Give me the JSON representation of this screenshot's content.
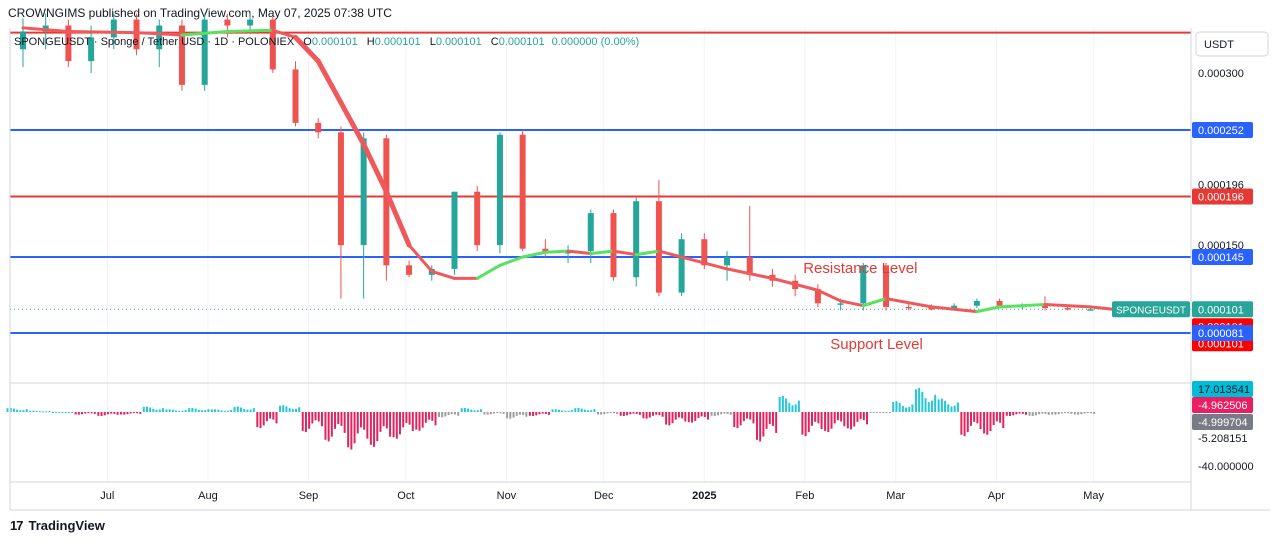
{
  "header": {
    "published": "CROWNGIMS published on TradingView.com, May 07, 2025 07:38 UTC"
  },
  "legend": {
    "symbol": "SPONGEUSDT · Sponge / Tether USD · 1D · POLONIEX",
    "o_label": "O",
    "o_value": "0.000101",
    "h_label": "H",
    "h_value": "0.000101",
    "l_label": "L",
    "l_value": "0.000101",
    "c_label": "C",
    "c_value": "0.000101",
    "change": "0.000000 (0.00%)"
  },
  "currency": "USDT",
  "footer": {
    "brand": "TradingView",
    "logo_text": "17"
  },
  "colors": {
    "bull": "#26a69a",
    "bear": "#ef5350",
    "red_line": "#e53935",
    "blue_line": "#2962ff",
    "ma_bear": "#f0595c",
    "ma_bull": "#59e15f",
    "osc_pos": "#26c6da",
    "osc_neg": "#e0245e",
    "osc_flat": "#9e9e9e"
  },
  "chart_data": [
    {
      "type": "candlestick",
      "symbol": "SPONGEUSDT",
      "ylim": [
        1e-05,
        0.000343
      ],
      "y_ticks": [
        "0.000300",
        "0.000252",
        "0.000196",
        "0.000150",
        "0.000145",
        "0.000101",
        "0.000081"
      ],
      "x_ticks": [
        "Jul",
        "Aug",
        "Sep",
        "Oct",
        "Nov",
        "Dec",
        "2025",
        "Feb",
        "Mar",
        "Apr",
        "May"
      ],
      "horizontal_levels": [
        {
          "value": 0.000334,
          "color": "red"
        },
        {
          "value": 0.000252,
          "color": "blue",
          "label": "0.000252"
        },
        {
          "value": 0.000196,
          "color": "red",
          "label": "0.000196"
        },
        {
          "value": 0.000145,
          "color": "blue",
          "label": "0.000145"
        },
        {
          "value": 8.1e-05,
          "color": "blue",
          "label": "0.000081"
        }
      ],
      "annotations": [
        {
          "text": "Resistance Level",
          "near_value": 0.000135,
          "near_date": "2025-02-15"
        },
        {
          "text": "Support Level",
          "near_value": 7.1e-05,
          "near_date": "2025-02-20"
        }
      ],
      "last_price": {
        "label": "SPONGEUSDT",
        "value": "0.000101"
      },
      "price_tags": [
        "0.000101",
        "0.000101"
      ],
      "candles": [
        [
          "2024-06-05",
          0.00032,
          0.000346,
          0.000305,
          0.000335
        ],
        [
          "2024-06-12",
          0.000335,
          0.00035,
          0.00032,
          0.00034
        ],
        [
          "2024-06-19",
          0.00034,
          0.000345,
          0.000305,
          0.00031
        ],
        [
          "2024-06-26",
          0.00031,
          0.00034,
          0.0003,
          0.00033
        ],
        [
          "2024-07-03",
          0.00033,
          0.00035,
          0.00032,
          0.000345
        ],
        [
          "2024-07-10",
          0.000345,
          0.00035,
          0.000315,
          0.00032
        ],
        [
          "2024-07-17",
          0.00032,
          0.000345,
          0.000305,
          0.00034
        ],
        [
          "2024-07-24",
          0.00034,
          0.000345,
          0.000285,
          0.00029
        ],
        [
          "2024-07-31",
          0.00029,
          0.00035,
          0.000285,
          0.000345
        ],
        [
          "2024-08-07",
          0.000345,
          0.00035,
          0.00033,
          0.00034
        ],
        [
          "2024-08-14",
          0.00034,
          0.00035,
          0.000335,
          0.000345
        ],
        [
          "2024-08-21",
          0.000345,
          0.000348,
          0.0003,
          0.000303
        ],
        [
          "2024-08-28",
          0.000303,
          0.00031,
          0.000255,
          0.000258
        ],
        [
          "2024-09-04",
          0.000258,
          0.000262,
          0.000245,
          0.00025
        ],
        [
          "2024-09-11",
          0.00025,
          0.000255,
          0.00011,
          0.000155
        ],
        [
          "2024-09-18",
          0.000155,
          0.00025,
          0.00011,
          0.000245
        ],
        [
          "2024-09-25",
          0.000245,
          0.000248,
          0.000125,
          0.000138
        ],
        [
          "2024-10-02",
          0.000138,
          0.000142,
          0.000128,
          0.00013
        ],
        [
          "2024-10-09",
          0.00013,
          0.000138,
          0.000125,
          0.000135
        ],
        [
          "2024-10-16",
          0.000135,
          0.0002,
          0.00013,
          0.0002
        ],
        [
          "2024-10-23",
          0.0002,
          0.000205,
          0.00015,
          0.000155
        ],
        [
          "2024-10-30",
          0.000155,
          0.00025,
          0.000148,
          0.000248
        ],
        [
          "2024-11-06",
          0.000248,
          0.000252,
          0.00015,
          0.000152
        ],
        [
          "2024-11-13",
          0.000152,
          0.00016,
          0.000145,
          0.000148
        ],
        [
          "2024-11-20",
          0.000148,
          0.000155,
          0.00014,
          0.00015
        ],
        [
          "2024-11-27",
          0.00015,
          0.000185,
          0.00014,
          0.000182
        ],
        [
          "2024-12-04",
          0.000182,
          0.000185,
          0.000125,
          0.000128
        ],
        [
          "2024-12-11",
          0.000128,
          0.000195,
          0.00012,
          0.000192
        ],
        [
          "2024-12-18",
          0.000192,
          0.00021,
          0.000112,
          0.000115
        ],
        [
          "2024-12-25",
          0.000115,
          0.000165,
          0.000112,
          0.00016
        ],
        [
          "2025-01-01",
          0.00016,
          0.000165,
          0.000135,
          0.000138
        ],
        [
          "2025-01-08",
          0.000138,
          0.00015,
          0.000125,
          0.000145
        ],
        [
          "2025-01-15",
          0.000145,
          0.000188,
          0.000125,
          0.00013
        ],
        [
          "2025-01-22",
          0.00013,
          0.000135,
          0.00012,
          0.000125
        ],
        [
          "2025-01-29",
          0.000125,
          0.00013,
          0.000112,
          0.000118
        ],
        [
          "2025-02-05",
          0.000118,
          0.000122,
          0.000103,
          0.000106
        ],
        [
          "2025-02-12",
          0.000106,
          0.00011,
          0.0001,
          0.000106
        ],
        [
          "2025-02-19",
          0.000106,
          0.00014,
          0.0001,
          0.000138
        ],
        [
          "2025-02-26",
          0.000138,
          0.00014,
          0.0001,
          0.000103
        ],
        [
          "2025-03-05",
          0.000103,
          0.000106,
          0.0001,
          0.000102
        ],
        [
          "2025-03-12",
          0.000102,
          0.000105,
          0.0001,
          0.000101
        ],
        [
          "2025-03-19",
          0.000101,
          0.000106,
          0.0001,
          0.000104
        ],
        [
          "2025-03-26",
          0.000104,
          0.00011,
          0.000102,
          0.000108
        ],
        [
          "2025-04-02",
          0.000108,
          0.00011,
          0.000102,
          0.000104
        ],
        [
          "2025-04-09",
          0.000104,
          0.000106,
          0.000101,
          0.000104
        ],
        [
          "2025-04-16",
          0.000104,
          0.000112,
          0.0001,
          0.000102
        ],
        [
          "2025-04-23",
          0.000102,
          0.000104,
          0.0001,
          0.000101
        ],
        [
          "2025-04-30",
          0.000101,
          0.000102,
          0.0001,
          0.000101
        ]
      ],
      "moving_average": [
        [
          "2024-06-05",
          0.000338
        ],
        [
          "2024-06-19",
          0.000335
        ],
        [
          "2024-07-10",
          0.000334
        ],
        [
          "2024-07-24",
          0.000332
        ],
        [
          "2024-08-07",
          0.000335
        ],
        [
          "2024-08-21",
          0.000336
        ],
        [
          "2024-08-28",
          0.00033
        ],
        [
          "2024-09-04",
          0.00031
        ],
        [
          "2024-09-11",
          0.000275
        ],
        [
          "2024-09-18",
          0.00024
        ],
        [
          "2024-09-25",
          0.0002
        ],
        [
          "2024-10-02",
          0.000155
        ],
        [
          "2024-10-09",
          0.000133
        ],
        [
          "2024-10-16",
          0.000127
        ],
        [
          "2024-10-23",
          0.000127
        ],
        [
          "2024-10-30",
          0.000138
        ],
        [
          "2024-11-06",
          0.000145
        ],
        [
          "2024-11-13",
          0.000149
        ],
        [
          "2024-11-20",
          0.00015
        ],
        [
          "2024-11-27",
          0.000148
        ],
        [
          "2024-12-04",
          0.00015
        ],
        [
          "2024-12-11",
          0.000147
        ],
        [
          "2024-12-18",
          0.00015
        ],
        [
          "2024-12-25",
          0.000145
        ],
        [
          "2025-01-08",
          0.000135
        ],
        [
          "2025-01-22",
          0.000127
        ],
        [
          "2025-02-05",
          0.000117
        ],
        [
          "2025-02-12",
          0.000108
        ],
        [
          "2025-02-19",
          0.000104
        ],
        [
          "2025-02-26",
          0.00011
        ],
        [
          "2025-03-12",
          0.000103
        ],
        [
          "2025-03-26",
          9.9e-05
        ],
        [
          "2025-04-02",
          0.000103
        ],
        [
          "2025-04-16",
          0.000105
        ],
        [
          "2025-04-30",
          0.000103
        ],
        [
          "2025-05-07",
          0.000101
        ]
      ]
    },
    {
      "type": "bar",
      "name": "oscillator",
      "ylim": [
        -48,
        20
      ],
      "y_ticks": [
        "17.013541",
        "-4.962506",
        "-4.999704",
        "-5.208151",
        "-40.000000"
      ],
      "bars": [
        [
          "2024-06-03",
          3,
          "pos"
        ],
        [
          "2024-06-10",
          1,
          "pos"
        ],
        [
          "2024-06-17",
          0,
          "pos"
        ],
        [
          "2024-06-24",
          -2,
          "neg"
        ],
        [
          "2024-07-01",
          -3,
          "neg"
        ],
        [
          "2024-07-08",
          -2,
          "neg"
        ],
        [
          "2024-07-15",
          4,
          "pos"
        ],
        [
          "2024-07-22",
          2,
          "pos"
        ],
        [
          "2024-07-29",
          3,
          "pos"
        ],
        [
          "2024-08-05",
          2,
          "pos"
        ],
        [
          "2024-08-12",
          4,
          "pos"
        ],
        [
          "2024-08-19",
          -12,
          "neg"
        ],
        [
          "2024-08-26",
          5,
          "pos"
        ],
        [
          "2024-09-02",
          -15,
          "neg"
        ],
        [
          "2024-09-09",
          -22,
          "neg"
        ],
        [
          "2024-09-16",
          -28,
          "neg"
        ],
        [
          "2024-09-23",
          -26,
          "neg"
        ],
        [
          "2024-09-30",
          -20,
          "neg"
        ],
        [
          "2024-10-07",
          -14,
          "neg"
        ],
        [
          "2024-10-14",
          -4,
          "flat"
        ],
        [
          "2024-10-21",
          3,
          "pos"
        ],
        [
          "2024-10-28",
          -2,
          "flat"
        ],
        [
          "2024-11-04",
          -5,
          "flat"
        ],
        [
          "2024-11-11",
          -3,
          "neg"
        ],
        [
          "2024-11-18",
          2,
          "pos"
        ],
        [
          "2024-11-25",
          3,
          "pos"
        ],
        [
          "2024-12-02",
          -2,
          "flat"
        ],
        [
          "2024-12-09",
          -3,
          "neg"
        ],
        [
          "2024-12-16",
          -5,
          "neg"
        ],
        [
          "2024-12-23",
          -10,
          "neg"
        ],
        [
          "2024-12-30",
          -8,
          "neg"
        ],
        [
          "2025-01-06",
          -3,
          "flat"
        ],
        [
          "2025-01-13",
          -12,
          "neg"
        ],
        [
          "2025-01-20",
          -22,
          "neg"
        ],
        [
          "2025-01-27",
          12,
          "pos"
        ],
        [
          "2025-02-03",
          -18,
          "neg"
        ],
        [
          "2025-02-10",
          -15,
          "neg"
        ],
        [
          "2025-02-17",
          -13,
          "neg"
        ],
        [
          "2025-02-24",
          0,
          "flat"
        ],
        [
          "2025-03-03",
          8,
          "pos"
        ],
        [
          "2025-03-10",
          18,
          "pos"
        ],
        [
          "2025-03-17",
          10,
          "pos"
        ],
        [
          "2025-03-24",
          -18,
          "neg"
        ],
        [
          "2025-03-31",
          -17,
          "neg"
        ],
        [
          "2025-04-07",
          -3,
          "neg"
        ],
        [
          "2025-04-14",
          -3,
          "flat"
        ],
        [
          "2025-04-21",
          -2,
          "flat"
        ],
        [
          "2025-04-28",
          -2,
          "flat"
        ]
      ]
    }
  ]
}
